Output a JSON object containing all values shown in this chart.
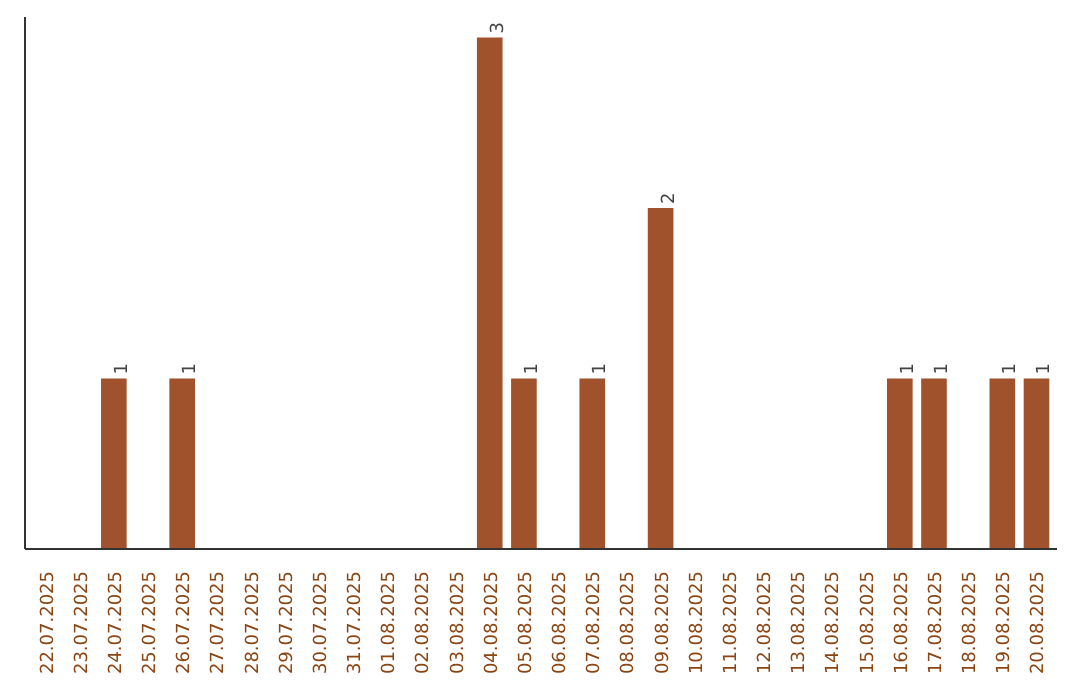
{
  "chart_data": {
    "type": "bar",
    "categories": [
      "22.07.2025",
      "23.07.2025",
      "24.07.2025",
      "25.07.2025",
      "26.07.2025",
      "27.07.2025",
      "28.07.2025",
      "29.07.2025",
      "30.07.2025",
      "31.07.2025",
      "01.08.2025",
      "02.08.2025",
      "03.08.2025",
      "04.08.2025",
      "05.08.2025",
      "06.08.2025",
      "07.08.2025",
      "08.08.2025",
      "09.08.2025",
      "10.08.2025",
      "11.08.2025",
      "12.08.2025",
      "13.08.2025",
      "14.08.2025",
      "15.08.2025",
      "16.08.2025",
      "17.08.2025",
      "18.08.2025",
      "19.08.2025",
      "20.08.2025"
    ],
    "values": [
      0,
      0,
      1,
      0,
      1,
      0,
      0,
      0,
      0,
      0,
      0,
      0,
      0,
      3,
      1,
      0,
      1,
      0,
      2,
      0,
      0,
      0,
      0,
      0,
      0,
      1,
      1,
      0,
      1,
      1
    ],
    "value_labels": [
      null,
      null,
      "1",
      null,
      "1",
      null,
      null,
      null,
      null,
      null,
      null,
      null,
      null,
      "3",
      "1",
      null,
      "1",
      null,
      "2",
      null,
      null,
      null,
      null,
      null,
      null,
      "1",
      "1",
      null,
      "1",
      "1"
    ],
    "color": "#a0522d",
    "tick_labels": "x",
    "grid": false
  }
}
